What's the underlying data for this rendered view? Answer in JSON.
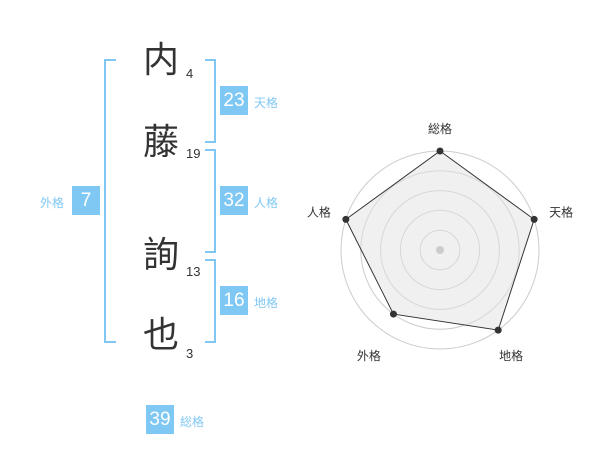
{
  "name": {
    "chars": [
      {
        "char": "内",
        "strokes": "4"
      },
      {
        "char": "藤",
        "strokes": "19"
      },
      {
        "char": "詢",
        "strokes": "13"
      },
      {
        "char": "也",
        "strokes": "3"
      }
    ]
  },
  "kaku": {
    "tenkaku": {
      "value": "23",
      "label": "天格"
    },
    "jinkaku": {
      "value": "32",
      "label": "人格"
    },
    "chikaku": {
      "value": "16",
      "label": "地格"
    },
    "gaikaku": {
      "value": "7",
      "label": "外格"
    },
    "soukaku": {
      "value": "39",
      "label": "総格"
    }
  },
  "colors": {
    "accent": "#80c8f4",
    "text": "#333333",
    "radar_fill": "#f0f0f0",
    "grid": "#cccccc"
  },
  "chart_data": {
    "type": "radar",
    "axes": [
      "総格",
      "天格",
      "地格",
      "外格",
      "人格"
    ],
    "values": [
      5,
      5,
      5,
      4,
      5
    ],
    "range": [
      0,
      5
    ],
    "grid_rings": 5
  }
}
